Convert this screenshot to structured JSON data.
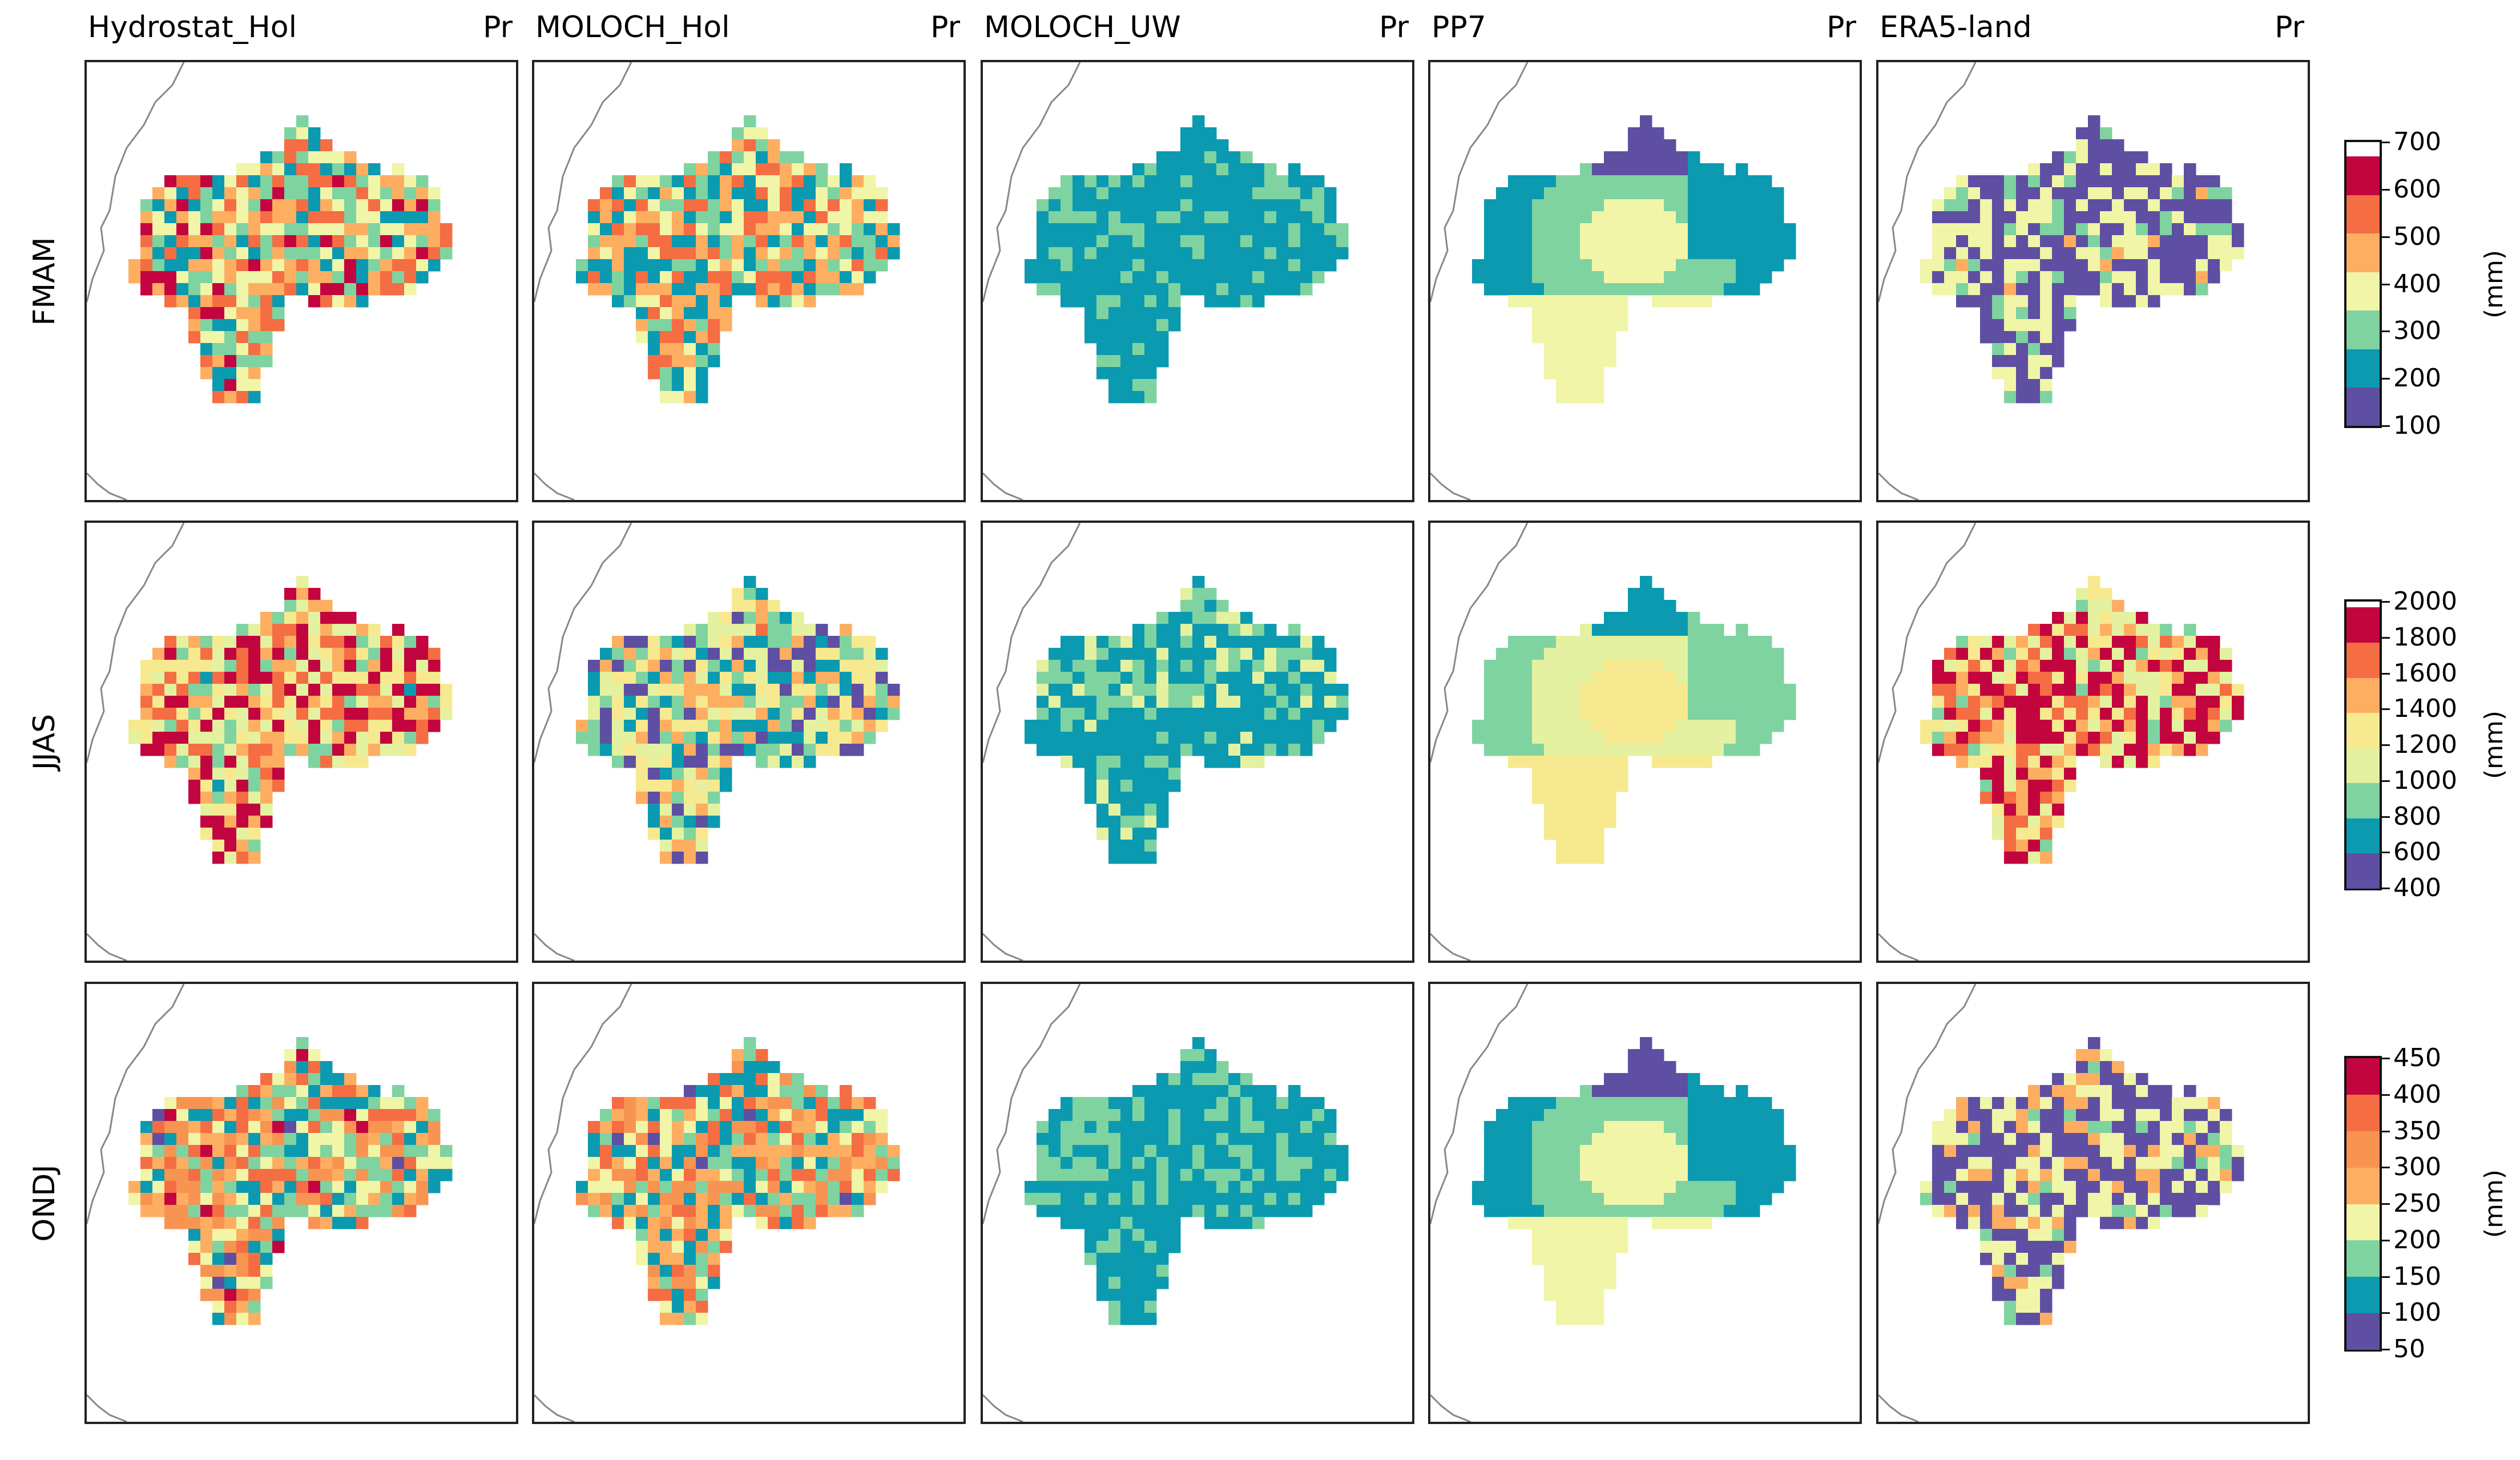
{
  "chart_data": {
    "type": "heatmap",
    "variable_label": "Pr",
    "columns": [
      "Hydrostat_Hol",
      "MOLOCH_Hol",
      "MOLOCH_UW",
      "PP7",
      "ERA5-land"
    ],
    "rows": [
      {
        "label": "FMAM",
        "colorbar": {
          "unit": "(mm)",
          "bounds": [
            100,
            200,
            300,
            400,
            500,
            600,
            700
          ],
          "ticks": [
            "100",
            "200",
            "300",
            "400",
            "500",
            "600",
            "700"
          ],
          "colors": [
            "#5e4fa2",
            "#0b9ab0",
            "#7fd3a0",
            "#f1f5a8",
            "#fdae61",
            "#f46d43",
            "#c2053e"
          ],
          "top_white_fraction": 0.05
        },
        "fields": [
          {
            "pattern": "noisy",
            "mean_class": 3.4,
            "spread": 2.6,
            "seed": 11
          },
          {
            "pattern": "noisy",
            "mean_class": 3.0,
            "spread": 2.4,
            "seed": 23
          },
          {
            "pattern": "smooth_low",
            "mean_class": 0.5,
            "spread": 1.4,
            "seed": 37
          },
          {
            "pattern": "pp7",
            "classes": [
              0,
              1,
              2,
              3
            ]
          },
          {
            "pattern": "spots",
            "mean_class": 0.6,
            "spread": 3.0,
            "seed": 53
          }
        ]
      },
      {
        "label": "JJAS",
        "colorbar": {
          "unit": "(mm)",
          "bounds": [
            400,
            600,
            800,
            1000,
            1200,
            1400,
            1600,
            1800,
            2000
          ],
          "ticks": [
            "400",
            "600",
            "800",
            "1000",
            "1200",
            "1400",
            "1600",
            "1800",
            "2000"
          ],
          "colors": [
            "#5e4fa2",
            "#0b9ab0",
            "#7fd3a0",
            "#e4f1a0",
            "#f7e98f",
            "#fdae61",
            "#f46d43",
            "#c2053e"
          ],
          "top_white_fraction": 0.02
        },
        "fields": [
          {
            "pattern": "noisy",
            "mean_class": 4.6,
            "spread": 3.2,
            "seed": 61
          },
          {
            "pattern": "noisy",
            "mean_class": 2.6,
            "spread": 3.0,
            "seed": 71
          },
          {
            "pattern": "smooth_low",
            "mean_class": 0.6,
            "spread": 2.4,
            "seed": 83
          },
          {
            "pattern": "pp7",
            "classes": [
              1,
              2,
              3,
              4
            ]
          },
          {
            "pattern": "noisy",
            "mean_class": 5.2,
            "spread": 3.0,
            "seed": 97
          }
        ]
      },
      {
        "label": "ONDJ",
        "colorbar": {
          "unit": "(mm)",
          "bounds": [
            50,
            100,
            150,
            200,
            250,
            300,
            350,
            400,
            450
          ],
          "ticks": [
            "50",
            "100",
            "150",
            "200",
            "250",
            "300",
            "350",
            "400",
            "450"
          ],
          "colors": [
            "#5e4fa2",
            "#0b9ab0",
            "#7fd3a0",
            "#f1f5a8",
            "#fdae61",
            "#f89452",
            "#f46d43",
            "#c2053e"
          ],
          "top_white_fraction": 0.0
        },
        "fields": [
          {
            "pattern": "noisy",
            "mean_class": 3.6,
            "spread": 3.2,
            "seed": 101
          },
          {
            "pattern": "noisy",
            "mean_class": 3.4,
            "spread": 3.0,
            "seed": 113
          },
          {
            "pattern": "smooth_low",
            "mean_class": 0.5,
            "spread": 1.6,
            "seed": 127
          },
          {
            "pattern": "pp7",
            "classes": [
              0,
              1,
              2,
              3
            ]
          },
          {
            "pattern": "spots",
            "mean_class": 0.6,
            "spread": 3.4,
            "seed": 139
          }
        ]
      }
    ]
  }
}
